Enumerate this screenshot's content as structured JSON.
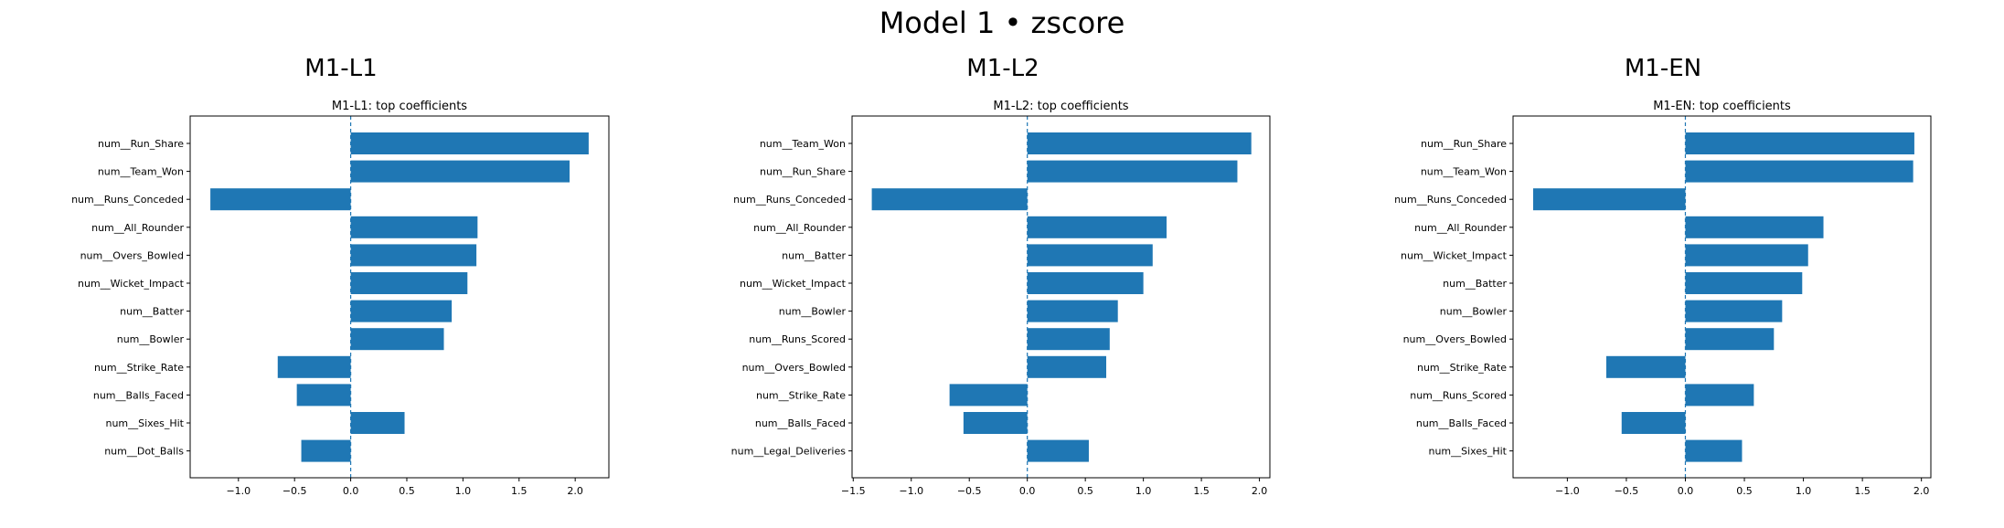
{
  "figure_title": "Model 1 • zscore",
  "panel_titles": [
    "M1-L1",
    "M1-L2",
    "M1-EN"
  ],
  "chart_data": [
    {
      "type": "bar",
      "orientation": "horizontal",
      "title": "M1-L1: top coefficients",
      "categories": [
        "num__Run_Share",
        "num__Team_Won",
        "num__Runs_Conceded",
        "num__All_Rounder",
        "num__Overs_Bowled",
        "num__Wicket_Impact",
        "num__Batter",
        "num__Bowler",
        "num__Strike_Rate",
        "num__Balls_Faced",
        "num__Sixes_Hit",
        "num__Dot_Balls"
      ],
      "values": [
        2.12,
        1.95,
        -1.25,
        1.13,
        1.12,
        1.04,
        0.9,
        0.83,
        -0.65,
        -0.48,
        0.48,
        -0.44
      ],
      "xlim": [
        -1.43,
        2.3
      ],
      "xticks": [
        -1.0,
        -0.5,
        0.0,
        0.5,
        1.0,
        1.5,
        2.0
      ],
      "xtick_labels": [
        "−1.0",
        "−0.5",
        "0.0",
        "0.5",
        "1.0",
        "1.5",
        "2.0"
      ],
      "bar_color": "#1f77b4",
      "zero_line": "dashed",
      "grid": false
    },
    {
      "type": "bar",
      "orientation": "horizontal",
      "title": "M1-L2: top coefficients",
      "categories": [
        "num__Team_Won",
        "num__Run_Share",
        "num__Runs_Conceded",
        "num__All_Rounder",
        "num__Batter",
        "num__Wicket_Impact",
        "num__Bowler",
        "num__Runs_Scored",
        "num__Overs_Bowled",
        "num__Strike_Rate",
        "num__Balls_Faced",
        "num__Legal_Deliveries"
      ],
      "values": [
        1.93,
        1.81,
        -1.34,
        1.2,
        1.08,
        1.0,
        0.78,
        0.71,
        0.68,
        -0.67,
        -0.55,
        0.53
      ],
      "xlim": [
        -1.51,
        2.09
      ],
      "xticks": [
        -1.5,
        -1.0,
        -0.5,
        0.0,
        0.5,
        1.0,
        1.5,
        2.0
      ],
      "xtick_labels": [
        "−1.5",
        "−1.0",
        "−0.5",
        "0.0",
        "0.5",
        "1.0",
        "1.5",
        "2.0"
      ],
      "bar_color": "#1f77b4",
      "zero_line": "dashed",
      "grid": false
    },
    {
      "type": "bar",
      "orientation": "horizontal",
      "title": "M1-EN: top coefficients",
      "categories": [
        "num__Run_Share",
        "num__Team_Won",
        "num__Runs_Conceded",
        "num__All_Rounder",
        "num__Wicket_Impact",
        "num__Batter",
        "num__Bowler",
        "num__Overs_Bowled",
        "num__Strike_Rate",
        "num__Runs_Scored",
        "num__Balls_Faced",
        "num__Sixes_Hit"
      ],
      "values": [
        1.94,
        1.93,
        -1.29,
        1.17,
        1.04,
        0.99,
        0.82,
        0.75,
        -0.67,
        0.58,
        -0.54,
        0.48
      ],
      "xlim": [
        -1.46,
        2.08
      ],
      "xticks": [
        -1.0,
        -0.5,
        0.0,
        0.5,
        1.0,
        1.5,
        2.0
      ],
      "xtick_labels": [
        "−1.0",
        "−0.5",
        "0.0",
        "0.5",
        "1.0",
        "1.5",
        "2.0"
      ],
      "bar_color": "#1f77b4",
      "zero_line": "dashed",
      "grid": false
    }
  ]
}
